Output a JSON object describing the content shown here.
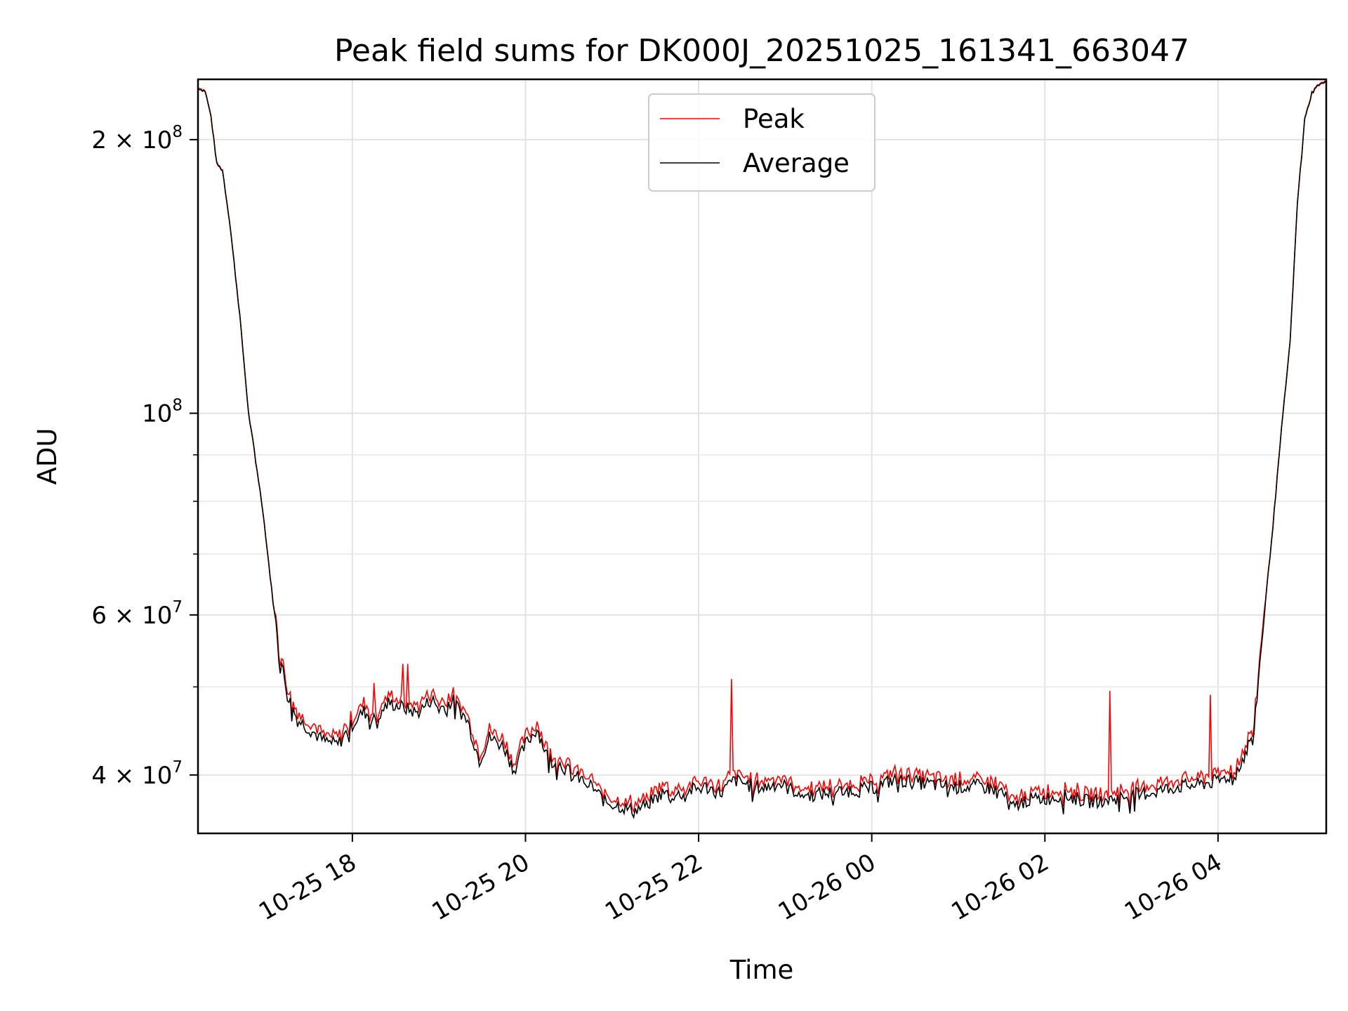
{
  "chart_data": {
    "type": "line",
    "title": "Peak field sums for DK000J_20251025_161341_663047",
    "xlabel": "Time",
    "ylabel": "ADU",
    "yscale": "log",
    "grid": true,
    "legend_position": "upper center",
    "xlim": [
      "2025-10-25T16:13",
      "2025-10-26T05:15"
    ],
    "ylim": [
      34500000,
      233000000
    ],
    "x_ticks": [
      {
        "t": "2025-10-25T18:00",
        "label": "10-25 18"
      },
      {
        "t": "2025-10-25T20:00",
        "label": "10-25 20"
      },
      {
        "t": "2025-10-25T22:00",
        "label": "10-25 22"
      },
      {
        "t": "2025-10-26T00:00",
        "label": "10-26 00"
      },
      {
        "t": "2025-10-26T02:00",
        "label": "10-26 02"
      },
      {
        "t": "2025-10-26T04:00",
        "label": "10-26 04"
      }
    ],
    "y_major_ticks": [
      {
        "v": 40000000,
        "base": "4 × 10",
        "exp": "7"
      },
      {
        "v": 60000000,
        "base": "6 × 10",
        "exp": "7"
      },
      {
        "v": 100000000,
        "base": "10",
        "exp": "8"
      },
      {
        "v": 200000000,
        "base": "2 × 10",
        "exp": "8"
      }
    ],
    "y_minor_ticks": [
      50000000,
      70000000,
      80000000,
      90000000
    ],
    "series": [
      {
        "name": "Average",
        "color": "#000000",
        "points": [
          [
            "2025-10-25T16:13",
            228000000
          ],
          [
            "2025-10-25T16:18",
            226000000
          ],
          [
            "2025-10-25T16:22",
            212000000
          ],
          [
            "2025-10-25T16:26",
            188000000
          ],
          [
            "2025-10-25T16:30",
            185000000
          ],
          [
            "2025-10-25T16:35",
            162000000
          ],
          [
            "2025-10-25T16:42",
            128000000
          ],
          [
            "2025-10-25T16:48",
            100000000
          ],
          [
            "2025-10-25T16:52",
            91000000
          ],
          [
            "2025-10-25T16:58",
            78000000
          ],
          [
            "2025-10-25T17:05",
            62000000
          ],
          [
            "2025-10-25T17:10",
            54000000
          ],
          [
            "2025-10-25T17:15",
            49000000
          ],
          [
            "2025-10-25T17:22",
            46000000
          ],
          [
            "2025-10-25T17:30",
            45000000
          ],
          [
            "2025-10-25T17:40",
            43600000
          ],
          [
            "2025-10-25T17:50",
            43200000
          ],
          [
            "2025-10-25T18:00",
            45500000
          ],
          [
            "2025-10-25T18:08",
            47000000
          ],
          [
            "2025-10-25T18:15",
            46000000
          ],
          [
            "2025-10-25T18:25",
            48000000
          ],
          [
            "2025-10-25T18:35",
            47500000
          ],
          [
            "2025-10-25T18:45",
            46800000
          ],
          [
            "2025-10-25T18:55",
            48500000
          ],
          [
            "2025-10-25T19:00",
            47300000
          ],
          [
            "2025-10-25T19:10",
            48200000
          ],
          [
            "2025-10-25T19:20",
            45800000
          ],
          [
            "2025-10-25T19:28",
            41500000
          ],
          [
            "2025-10-25T19:35",
            44000000
          ],
          [
            "2025-10-25T19:45",
            43000000
          ],
          [
            "2025-10-25T19:52",
            40500000
          ],
          [
            "2025-10-25T20:00",
            43200000
          ],
          [
            "2025-10-25T20:08",
            45000000
          ],
          [
            "2025-10-25T20:15",
            42000000
          ],
          [
            "2025-10-25T20:25",
            41000000
          ],
          [
            "2025-10-25T20:35",
            39800000
          ],
          [
            "2025-10-25T20:45",
            39000000
          ],
          [
            "2025-10-25T20:55",
            37400000
          ],
          [
            "2025-10-25T21:05",
            37000000
          ],
          [
            "2025-10-25T21:15",
            36500000
          ],
          [
            "2025-10-25T21:25",
            37200000
          ],
          [
            "2025-10-25T21:35",
            38200000
          ],
          [
            "2025-10-25T21:45",
            38000000
          ],
          [
            "2025-10-25T21:55",
            38500000
          ],
          [
            "2025-10-25T22:05",
            38800000
          ],
          [
            "2025-10-25T22:15",
            38200000
          ],
          [
            "2025-10-25T22:25",
            39500000
          ],
          [
            "2025-10-25T22:35",
            39000000
          ],
          [
            "2025-10-25T22:45",
            38700000
          ],
          [
            "2025-10-25T22:55",
            39200000
          ],
          [
            "2025-10-25T23:05",
            38500000
          ],
          [
            "2025-10-25T23:15",
            38000000
          ],
          [
            "2025-10-25T23:30",
            38200000
          ],
          [
            "2025-10-25T23:45",
            38500000
          ],
          [
            "2025-10-26T00:00",
            38700000
          ],
          [
            "2025-10-26T00:15",
            39500000
          ],
          [
            "2025-10-26T00:30",
            39300000
          ],
          [
            "2025-10-26T00:45",
            39000000
          ],
          [
            "2025-10-26T01:00",
            38800000
          ],
          [
            "2025-10-26T01:15",
            38900000
          ],
          [
            "2025-10-26T01:30",
            38400000
          ],
          [
            "2025-10-26T01:37",
            36800000
          ],
          [
            "2025-10-26T01:45",
            37500000
          ],
          [
            "2025-10-26T02:00",
            37700000
          ],
          [
            "2025-10-26T02:15",
            37900000
          ],
          [
            "2025-10-26T02:30",
            37400000
          ],
          [
            "2025-10-26T02:45",
            37600000
          ],
          [
            "2025-10-26T03:00",
            38000000
          ],
          [
            "2025-10-26T03:15",
            38300000
          ],
          [
            "2025-10-26T03:30",
            38800000
          ],
          [
            "2025-10-26T03:45",
            39000000
          ],
          [
            "2025-10-26T04:00",
            39400000
          ],
          [
            "2025-10-26T04:10",
            40000000
          ],
          [
            "2025-10-26T04:18",
            41800000
          ],
          [
            "2025-10-26T04:25",
            45000000
          ],
          [
            "2025-10-26T04:32",
            60000000
          ],
          [
            "2025-10-26T04:38",
            75000000
          ],
          [
            "2025-10-26T04:44",
            96000000
          ],
          [
            "2025-10-26T04:50",
            120000000
          ],
          [
            "2025-10-26T04:55",
            170000000
          ],
          [
            "2025-10-26T05:00",
            210000000
          ],
          [
            "2025-10-26T05:05",
            225000000
          ],
          [
            "2025-10-26T05:10",
            230000000
          ],
          [
            "2025-10-26T05:15",
            231000000
          ]
        ]
      },
      {
        "name": "Peak",
        "color": "#ff0000",
        "spikes": [
          [
            "2025-10-25T18:15",
            50500000
          ],
          [
            "2025-10-25T18:35",
            53000000
          ],
          [
            "2025-10-25T18:38",
            53000000
          ],
          [
            "2025-10-25T22:23",
            51000000
          ],
          [
            "2025-10-26T02:45",
            49500000
          ],
          [
            "2025-10-26T03:55",
            49000000
          ]
        ]
      }
    ]
  }
}
